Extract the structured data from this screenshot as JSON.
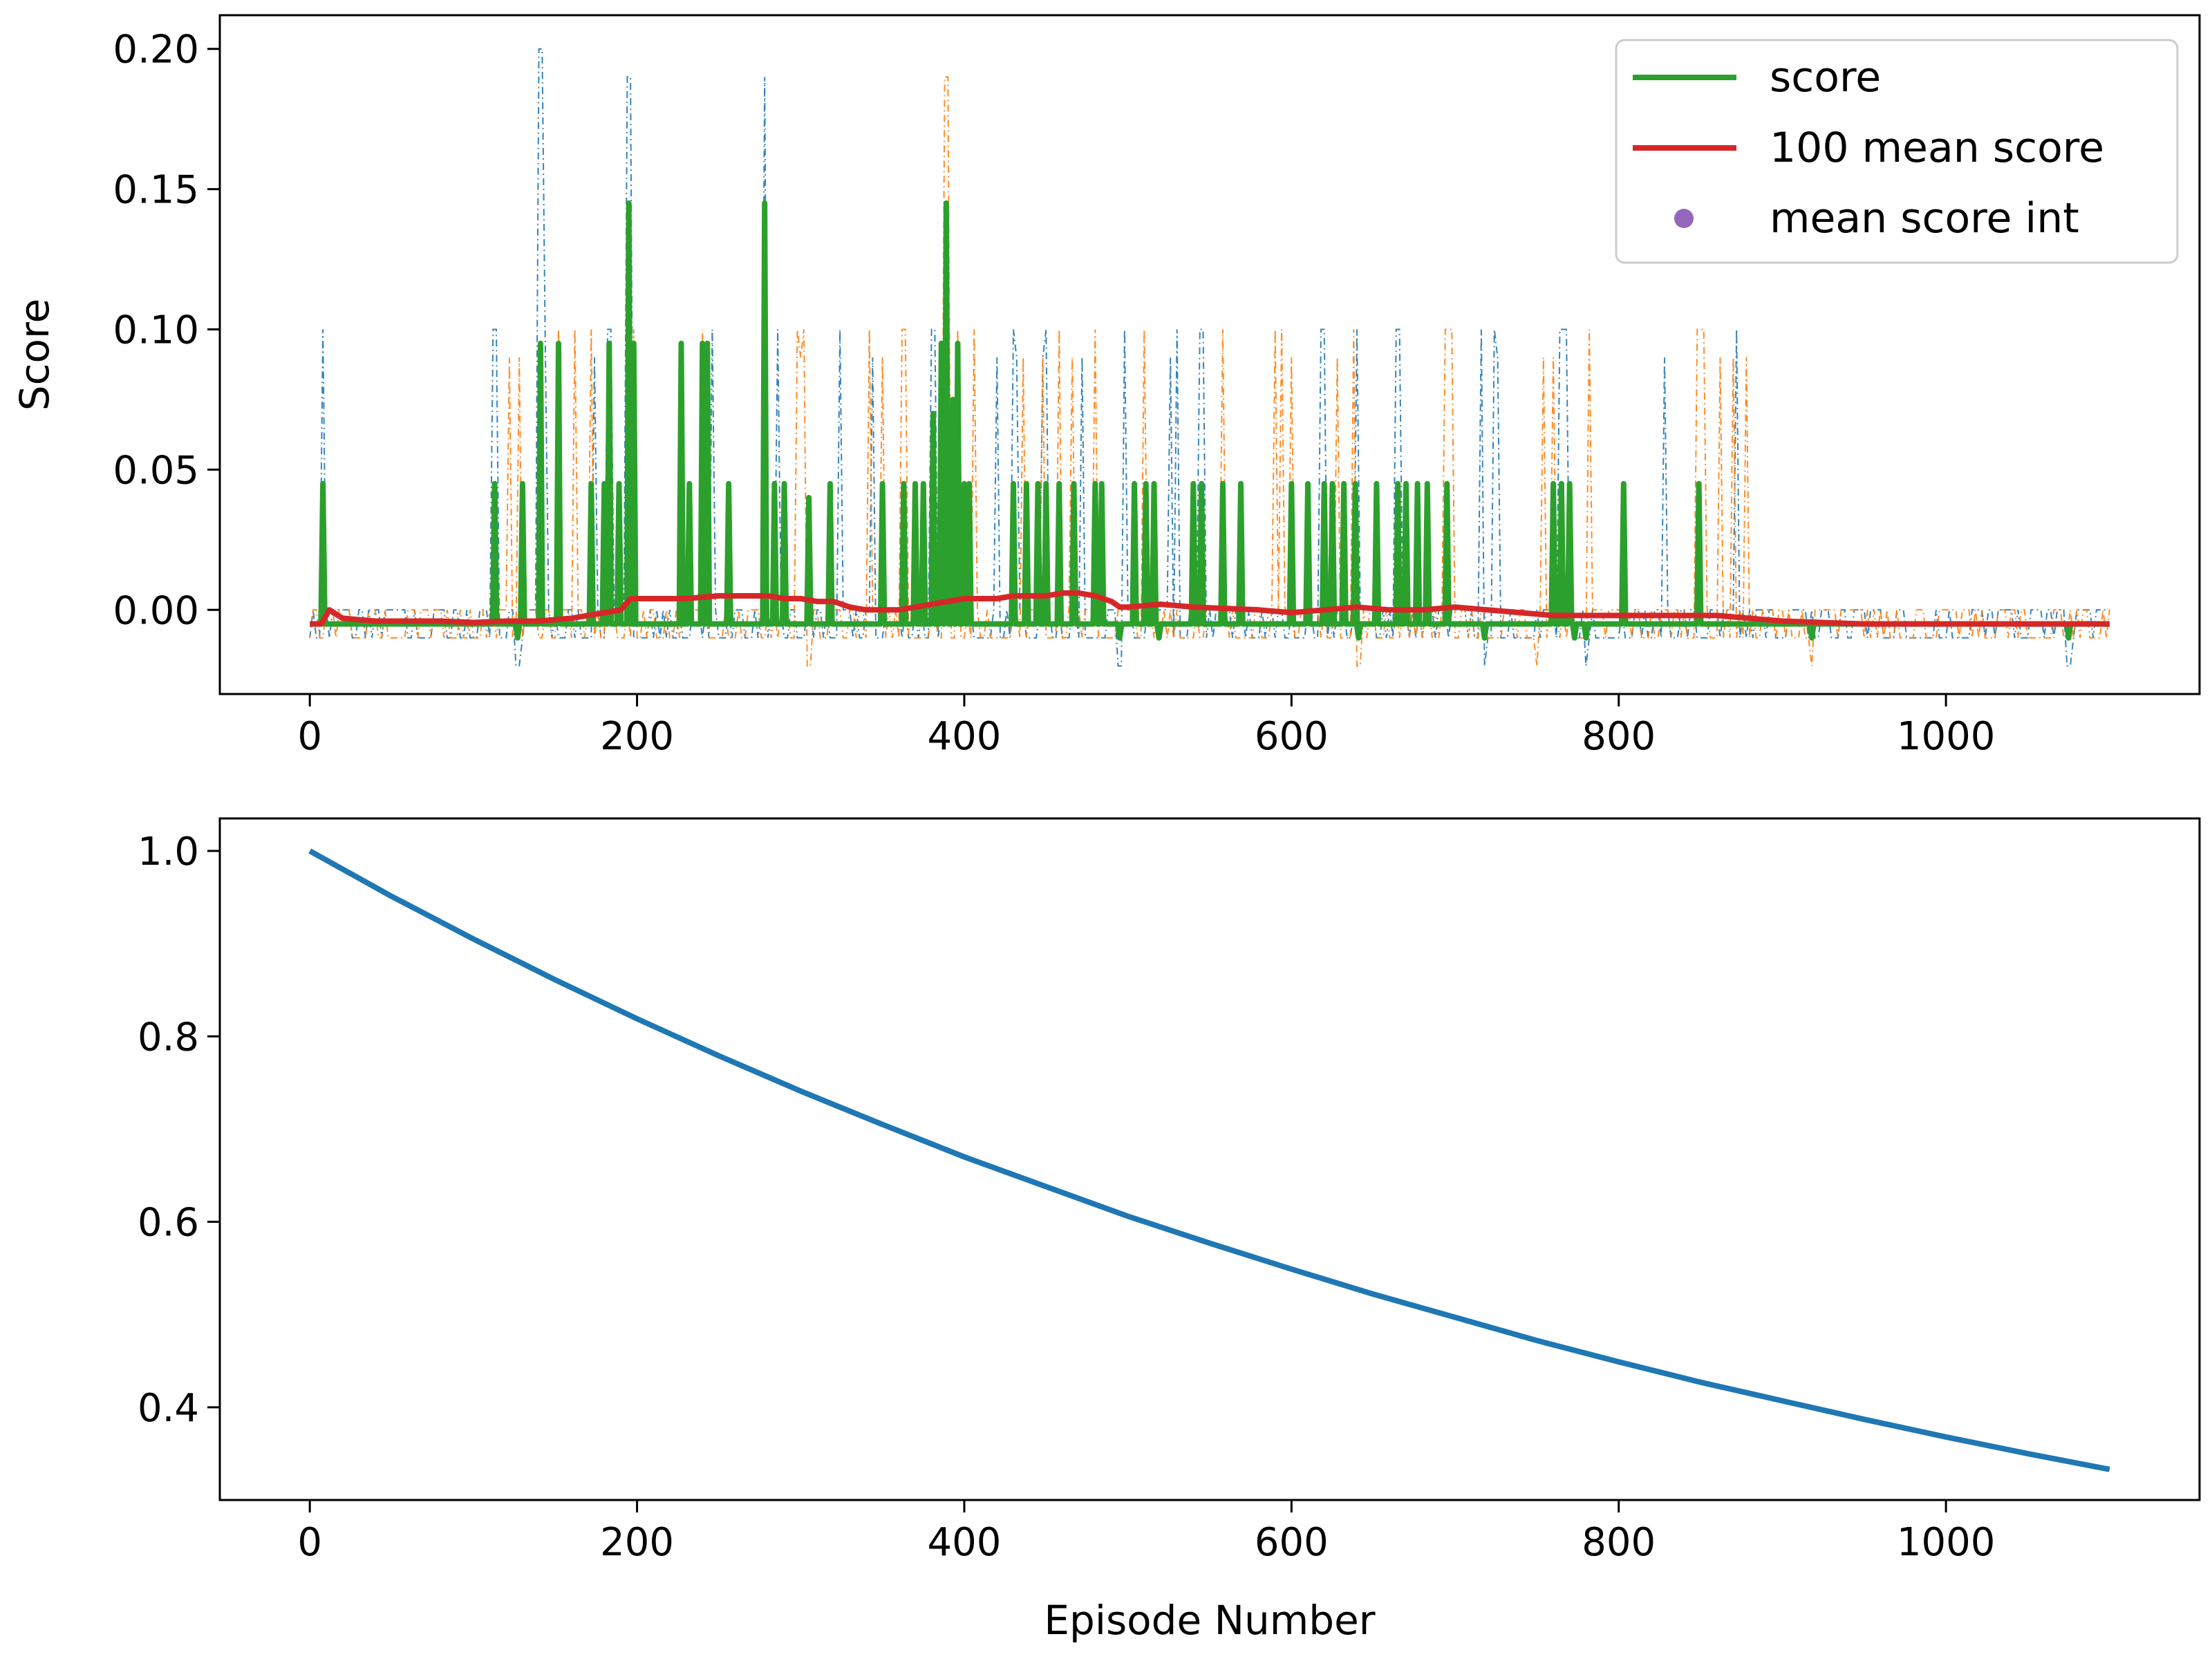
{
  "chart_data": [
    {
      "type": "line",
      "title": "",
      "xlabel": "",
      "ylabel": "Score",
      "xlim": [
        -55,
        1155
      ],
      "ylim": [
        -0.03,
        0.212
      ],
      "xticks": [
        0,
        200,
        400,
        600,
        800,
        1000
      ],
      "yticks": [
        -0.0,
        0.05,
        0.1,
        0.15,
        0.2
      ],
      "xtick_labels": [
        "0",
        "200",
        "400",
        "600",
        "800",
        "1000"
      ],
      "ytick_labels": [
        "0.00",
        "0.05",
        "0.10",
        "0.15",
        "0.20"
      ],
      "grid": false,
      "legend": {
        "placement": "top-right",
        "entries": [
          {
            "label": "score",
            "color": "#2ca02c",
            "marker": "line"
          },
          {
            "label": "100 mean score",
            "color": "#d62728",
            "marker": "line"
          },
          {
            "label": "mean score int",
            "color": "#9467bd",
            "marker": "dot"
          }
        ]
      },
      "colors": {
        "agent_1": "#1f77b4",
        "agent_2": "#ff7f0e",
        "score": "#2ca02c",
        "mean": "#d62728"
      },
      "baseline_score": -0.005,
      "score_peaks": [
        {
          "x": 8,
          "y": 0.045
        },
        {
          "x": 113,
          "y": 0.045
        },
        {
          "x": 130,
          "y": 0.045
        },
        {
          "x": 141,
          "y": 0.095
        },
        {
          "x": 152,
          "y": 0.095
        },
        {
          "x": 172,
          "y": 0.045
        },
        {
          "x": 180,
          "y": 0.045
        },
        {
          "x": 183,
          "y": 0.095
        },
        {
          "x": 189,
          "y": 0.045
        },
        {
          "x": 195,
          "y": 0.145
        },
        {
          "x": 198,
          "y": 0.095
        },
        {
          "x": 227,
          "y": 0.095
        },
        {
          "x": 232,
          "y": 0.045
        },
        {
          "x": 240,
          "y": 0.095
        },
        {
          "x": 243,
          "y": 0.095
        },
        {
          "x": 256,
          "y": 0.045
        },
        {
          "x": 278,
          "y": 0.145
        },
        {
          "x": 284,
          "y": 0.045
        },
        {
          "x": 290,
          "y": 0.045
        },
        {
          "x": 305,
          "y": 0.04
        },
        {
          "x": 318,
          "y": 0.045
        },
        {
          "x": 350,
          "y": 0.045
        },
        {
          "x": 363,
          "y": 0.045
        },
        {
          "x": 370,
          "y": 0.045
        },
        {
          "x": 375,
          "y": 0.045
        },
        {
          "x": 381,
          "y": 0.07
        },
        {
          "x": 386,
          "y": 0.095
        },
        {
          "x": 389,
          "y": 0.145
        },
        {
          "x": 393,
          "y": 0.075
        },
        {
          "x": 396,
          "y": 0.095
        },
        {
          "x": 400,
          "y": 0.045
        },
        {
          "x": 403,
          "y": 0.045
        },
        {
          "x": 430,
          "y": 0.045
        },
        {
          "x": 438,
          "y": 0.045
        },
        {
          "x": 445,
          "y": 0.045
        },
        {
          "x": 450,
          "y": 0.045
        },
        {
          "x": 458,
          "y": 0.045
        },
        {
          "x": 467,
          "y": 0.045
        },
        {
          "x": 480,
          "y": 0.045
        },
        {
          "x": 484,
          "y": 0.045
        },
        {
          "x": 504,
          "y": 0.045
        },
        {
          "x": 511,
          "y": 0.045
        },
        {
          "x": 516,
          "y": 0.045
        },
        {
          "x": 540,
          "y": 0.045
        },
        {
          "x": 545,
          "y": 0.045
        },
        {
          "x": 558,
          "y": 0.045
        },
        {
          "x": 569,
          "y": 0.045
        },
        {
          "x": 600,
          "y": 0.045
        },
        {
          "x": 610,
          "y": 0.045
        },
        {
          "x": 620,
          "y": 0.045
        },
        {
          "x": 625,
          "y": 0.045
        },
        {
          "x": 632,
          "y": 0.045
        },
        {
          "x": 639,
          "y": 0.045
        },
        {
          "x": 652,
          "y": 0.045
        },
        {
          "x": 665,
          "y": 0.045
        },
        {
          "x": 670,
          "y": 0.045
        },
        {
          "x": 677,
          "y": 0.045
        },
        {
          "x": 683,
          "y": 0.045
        },
        {
          "x": 695,
          "y": 0.045
        },
        {
          "x": 760,
          "y": 0.045
        },
        {
          "x": 765,
          "y": 0.045
        },
        {
          "x": 770,
          "y": 0.045
        },
        {
          "x": 803,
          "y": 0.045
        },
        {
          "x": 849,
          "y": 0.045
        }
      ],
      "score_dips": [
        {
          "x": 127,
          "y": -0.01
        },
        {
          "x": 495,
          "y": -0.01
        },
        {
          "x": 519,
          "y": -0.01
        },
        {
          "x": 641,
          "y": -0.01
        },
        {
          "x": 718,
          "y": -0.01
        },
        {
          "x": 773,
          "y": -0.01
        },
        {
          "x": 780,
          "y": -0.01
        },
        {
          "x": 918,
          "y": -0.01
        },
        {
          "x": 1075,
          "y": -0.01
        }
      ],
      "agent_1_spikes": [
        {
          "x": 8,
          "y": 0.1
        },
        {
          "x": 113,
          "y": 0.1
        },
        {
          "x": 141,
          "y": 0.2
        },
        {
          "x": 183,
          "y": 0.1
        },
        {
          "x": 195,
          "y": 0.19
        },
        {
          "x": 278,
          "y": 0.19
        },
        {
          "x": 381,
          "y": 0.1
        },
        {
          "x": 389,
          "y": 0.1
        },
        {
          "x": 430,
          "y": 0.1
        },
        {
          "x": 450,
          "y": 0.1
        },
        {
          "x": 545,
          "y": 0.1
        },
        {
          "x": 620,
          "y": 0.1
        },
        {
          "x": 665,
          "y": 0.1
        },
        {
          "x": 765,
          "y": 0.1
        }
      ],
      "agent_2_spikes": [
        {
          "x": 152,
          "y": 0.1
        },
        {
          "x": 172,
          "y": 0.1
        },
        {
          "x": 198,
          "y": 0.1
        },
        {
          "x": 240,
          "y": 0.1
        },
        {
          "x": 350,
          "y": 0.09
        },
        {
          "x": 363,
          "y": 0.1
        },
        {
          "x": 389,
          "y": 0.19
        },
        {
          "x": 396,
          "y": 0.1
        },
        {
          "x": 458,
          "y": 0.1
        },
        {
          "x": 558,
          "y": 0.1
        },
        {
          "x": 600,
          "y": 0.09
        },
        {
          "x": 639,
          "y": 0.1
        },
        {
          "x": 695,
          "y": 0.1
        },
        {
          "x": 760,
          "y": 0.09
        },
        {
          "x": 849,
          "y": 0.1
        }
      ],
      "agent_negative_spikes": [
        {
          "x": 127,
          "y": -0.02
        },
        {
          "x": 305,
          "y": -0.02
        },
        {
          "x": 495,
          "y": -0.02
        },
        {
          "x": 641,
          "y": -0.02
        },
        {
          "x": 718,
          "y": -0.02
        },
        {
          "x": 750,
          "y": -0.02
        },
        {
          "x": 780,
          "y": -0.02
        },
        {
          "x": 918,
          "y": -0.02
        },
        {
          "x": 1075,
          "y": -0.02
        }
      ],
      "series": [
        {
          "name": "100 mean score",
          "x": [
            0,
            7,
            12,
            20,
            40,
            60,
            80,
            100,
            120,
            140,
            160,
            180,
            190,
            196,
            205,
            220,
            230,
            240,
            250,
            260,
            270,
            280,
            290,
            300,
            310,
            320,
            330,
            340,
            350,
            360,
            370,
            380,
            390,
            400,
            410,
            420,
            430,
            440,
            450,
            460,
            470,
            480,
            490,
            495,
            500,
            510,
            520,
            540,
            560,
            580,
            600,
            620,
            640,
            660,
            680,
            700,
            720,
            740,
            760,
            780,
            800,
            830,
            860,
            900,
            950,
            1000,
            1050,
            1100
          ],
          "y": [
            -0.005,
            -0.005,
            0.0,
            -0.003,
            -0.004,
            -0.004,
            -0.004,
            -0.0045,
            -0.004,
            -0.004,
            -0.003,
            -0.001,
            0.0,
            0.004,
            0.004,
            0.004,
            0.004,
            0.0045,
            0.005,
            0.005,
            0.005,
            0.005,
            0.004,
            0.004,
            0.003,
            0.003,
            0.001,
            0.0,
            0.0,
            0.0,
            0.001,
            0.002,
            0.003,
            0.004,
            0.004,
            0.004,
            0.005,
            0.005,
            0.005,
            0.006,
            0.006,
            0.005,
            0.003,
            0.001,
            0.001,
            0.0015,
            0.002,
            0.001,
            0.0005,
            0.0,
            -0.001,
            0.0,
            0.001,
            0.0,
            0.0,
            0.001,
            0.0,
            -0.001,
            -0.002,
            -0.002,
            -0.002,
            -0.002,
            -0.002,
            -0.004,
            -0.005,
            -0.005,
            -0.005,
            -0.005
          ]
        }
      ]
    },
    {
      "type": "line",
      "title": "",
      "xlabel": "Episode Number",
      "ylabel": "",
      "xlim": [
        -55,
        1155
      ],
      "ylim": [
        0.3,
        1.035
      ],
      "xticks": [
        0,
        200,
        400,
        600,
        800,
        1000
      ],
      "yticks": [
        0.4,
        0.6,
        0.8,
        1.0
      ],
      "xtick_labels": [
        "0",
        "200",
        "400",
        "600",
        "800",
        "1000"
      ],
      "ytick_labels": [
        "0.4",
        "0.6",
        "0.8",
        "1.0"
      ],
      "grid": false,
      "series": [
        {
          "color": "#1f77b4",
          "x": [
            0,
            50,
            100,
            150,
            200,
            250,
            300,
            350,
            400,
            450,
            500,
            550,
            600,
            650,
            700,
            750,
            800,
            850,
            900,
            950,
            1000,
            1050,
            1100
          ],
          "y": [
            1.0,
            0.951,
            0.905,
            0.861,
            0.819,
            0.779,
            0.741,
            0.705,
            0.67,
            0.638,
            0.606,
            0.577,
            0.549,
            0.522,
            0.497,
            0.472,
            0.449,
            0.427,
            0.407,
            0.387,
            0.368,
            0.35,
            0.333
          ]
        }
      ]
    }
  ]
}
